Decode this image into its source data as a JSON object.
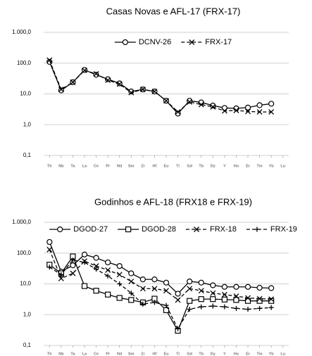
{
  "chart_data": [
    {
      "type": "line",
      "title": "Casas Novas e AFL-17 (FRX-17)",
      "categories": [
        "Th",
        "Nb",
        "Ta",
        "La",
        "Ce",
        "Pr",
        "Nd",
        "Sm",
        "Zr",
        "Hf",
        "Eu",
        "Ti",
        "Gd",
        "Tb",
        "Dy",
        "Y",
        "Ho",
        "Er",
        "Tm",
        "Yb",
        "Lu"
      ],
      "log_scale": true,
      "grid": true,
      "ylim": [
        0.1,
        1000
      ],
      "yticks": [
        {
          "value": 0.1,
          "label": "0,1"
        },
        {
          "value": 1,
          "label": "1,0"
        },
        {
          "value": 10,
          "label": "10,0"
        },
        {
          "value": 100,
          "label": "100,0"
        },
        {
          "value": 1000,
          "label": "1.000,0"
        }
      ],
      "legend": "top",
      "series": [
        {
          "name": "DCNV-26",
          "color": "#000000",
          "marker": "circle",
          "line_style": "solid",
          "values": [
            110,
            13,
            24,
            60,
            42,
            30,
            22,
            12,
            14,
            12,
            6,
            2.3,
            6,
            5.3,
            4.2,
            3.5,
            3.4,
            3.6,
            4.3,
            4.8,
            null
          ]
        },
        {
          "name": "FRX-17",
          "color": "#000000",
          "marker": "x",
          "line_style": "dashed",
          "values": [
            125,
            14,
            24,
            58,
            45,
            28,
            21,
            11,
            14,
            12,
            6,
            2.6,
            5.5,
            4.5,
            3.8,
            2.8,
            2.9,
            2.7,
            2.6,
            2.6,
            null
          ]
        }
      ]
    },
    {
      "type": "line",
      "title": "Godinhos e AFL-18 (FRX18 e FRX-19)",
      "categories": [
        "Th",
        "Nb",
        "Ta",
        "La",
        "Ce",
        "Pr",
        "Nd",
        "Sm",
        "Zr",
        "Hf",
        "Eu",
        "Ti",
        "Gd",
        "Tb",
        "Dy",
        "Y",
        "Ho",
        "Er",
        "Tm",
        "Yb",
        "Lu"
      ],
      "log_scale": true,
      "grid": true,
      "ylim": [
        0.1,
        1000
      ],
      "yticks": [
        {
          "value": 0.1,
          "label": "0,1"
        },
        {
          "value": 1,
          "label": "1,0"
        },
        {
          "value": 10,
          "label": "10,0"
        },
        {
          "value": 100,
          "label": "100,0"
        },
        {
          "value": 1000,
          "label": "1.000,0"
        }
      ],
      "legend": "top",
      "series": [
        {
          "name": "DGOD-27",
          "color": "#000000",
          "marker": "circle",
          "line_style": "solid",
          "values": [
            230,
            25,
            40,
            90,
            70,
            50,
            38,
            22,
            14,
            14,
            11,
            4.8,
            12,
            11,
            9,
            8,
            8,
            8,
            7.5,
            7.3,
            null
          ]
        },
        {
          "name": "DGOD-28",
          "color": "#000000",
          "marker": "square",
          "line_style": "solid",
          "values": [
            42,
            22,
            78,
            8.5,
            6,
            4.5,
            3.5,
            3,
            2.5,
            3.3,
            1.4,
            0.3,
            2.8,
            3.2,
            3.2,
            3.1,
            3,
            2.8,
            2.8,
            2.8,
            null
          ]
        },
        {
          "name": "FRX-18",
          "color": "#000000",
          "marker": "x",
          "line_style": "dashed",
          "values": [
            130,
            15,
            22,
            55,
            38,
            28,
            20,
            12,
            7,
            7,
            6,
            3,
            7,
            6,
            5,
            4.5,
            4,
            3.5,
            3.3,
            3.2,
            null
          ]
        },
        {
          "name": "FRX-19",
          "color": "#000000",
          "marker": "plus",
          "line_style": "dashed",
          "values": [
            35,
            20,
            60,
            50,
            30,
            18,
            10,
            5,
            2.2,
            2.5,
            2,
            0.35,
            1.5,
            1.8,
            1.9,
            1.8,
            1.6,
            1.5,
            1.6,
            1.7,
            null
          ]
        }
      ]
    }
  ]
}
